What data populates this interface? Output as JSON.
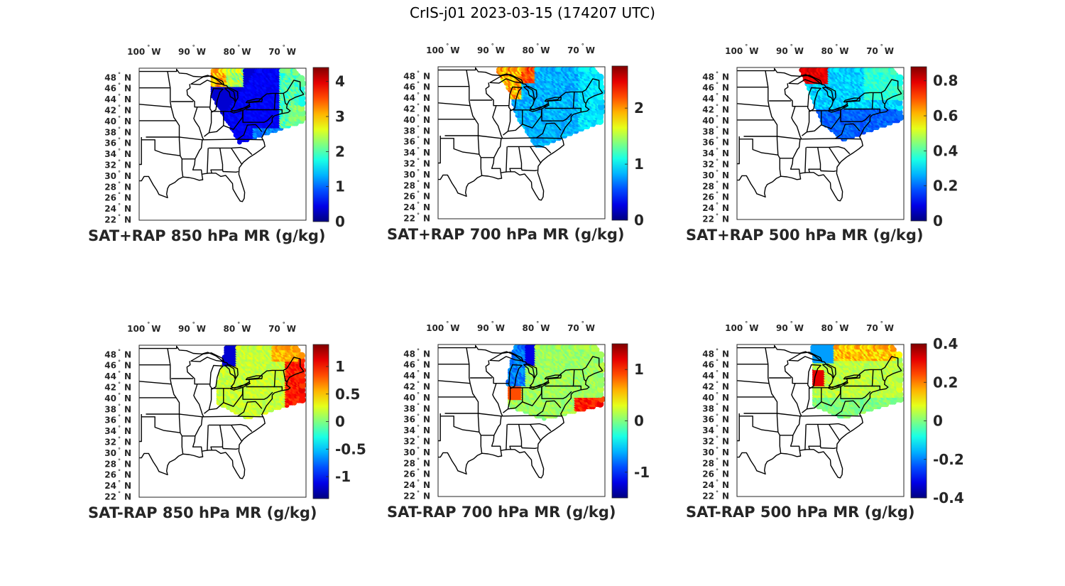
{
  "title": "CrIS-j01 2023-03-15 (174207 UTC)",
  "lon_ticks": [
    {
      "label": "100",
      "value": -100
    },
    {
      "label": "90",
      "value": -90
    },
    {
      "label": "80",
      "value": -80
    },
    {
      "label": "70",
      "value": -70
    }
  ],
  "lon_suffix": "W",
  "lat_ticks": [
    48,
    46,
    44,
    42,
    40,
    38,
    36,
    34,
    32,
    30,
    28,
    26,
    24,
    22
  ],
  "lat_suffix": "N",
  "degree_mark": "°",
  "panels": [
    {
      "id": "sat-rap-sum-850",
      "title": "SAT+RAP 850 hPa MR (g/kg)",
      "colorbar": {
        "min": 0,
        "max": 4.4,
        "ticks": [
          {
            "v": 0,
            "label": "0"
          },
          {
            "v": 1,
            "label": "1"
          },
          {
            "v": 2,
            "label": "2"
          },
          {
            "v": 3,
            "label": "3"
          },
          {
            "v": 4,
            "label": "4"
          }
        ]
      },
      "field": "sum850"
    },
    {
      "id": "sat-rap-sum-700",
      "title": "SAT+RAP 700 hPa MR (g/kg)",
      "colorbar": {
        "min": 0,
        "max": 2.75,
        "ticks": [
          {
            "v": 0,
            "label": "0"
          },
          {
            "v": 1,
            "label": "1"
          },
          {
            "v": 2,
            "label": "2"
          }
        ]
      },
      "field": "sum700"
    },
    {
      "id": "sat-rap-sum-500",
      "title": "SAT+RAP 500 hPa MR (g/kg)",
      "colorbar": {
        "min": 0,
        "max": 0.88,
        "ticks": [
          {
            "v": 0,
            "label": "0"
          },
          {
            "v": 0.2,
            "label": "0.2"
          },
          {
            "v": 0.4,
            "label": "0.4"
          },
          {
            "v": 0.6,
            "label": "0.6"
          },
          {
            "v": 0.8,
            "label": "0.8"
          }
        ]
      },
      "field": "sum500"
    },
    {
      "id": "sat-rap-diff-850",
      "title": "SAT-RAP 850 hPa MR (g/kg)",
      "colorbar": {
        "min": -1.4,
        "max": 1.4,
        "ticks": [
          {
            "v": -1,
            "label": "-1"
          },
          {
            "v": -0.5,
            "label": "-0.5"
          },
          {
            "v": 0,
            "label": "0"
          },
          {
            "v": 0.5,
            "label": "0.5"
          },
          {
            "v": 1,
            "label": "1"
          }
        ]
      },
      "field": "diff850"
    },
    {
      "id": "sat-rap-diff-700",
      "title": "SAT-RAP 700 hPa MR (g/kg)",
      "colorbar": {
        "min": -1.5,
        "max": 1.5,
        "ticks": [
          {
            "v": -1,
            "label": "-1"
          },
          {
            "v": 0,
            "label": "0"
          },
          {
            "v": 1,
            "label": "1"
          }
        ]
      },
      "field": "diff700"
    },
    {
      "id": "sat-rap-diff-500",
      "title": "SAT-RAP 500 hPa MR (g/kg)",
      "colorbar": {
        "min": -0.4,
        "max": 0.4,
        "ticks": [
          {
            "v": -0.4,
            "label": "-0.4"
          },
          {
            "v": -0.2,
            "label": "-0.2"
          },
          {
            "v": 0,
            "label": "0"
          },
          {
            "v": 0.2,
            "label": "0.2"
          },
          {
            "v": 0.4,
            "label": "0.4"
          }
        ]
      },
      "field": "diff500"
    }
  ],
  "colors": {
    "jet_low": "#00008f",
    "jet_high": "#800000",
    "map_lines": "#000000"
  }
}
